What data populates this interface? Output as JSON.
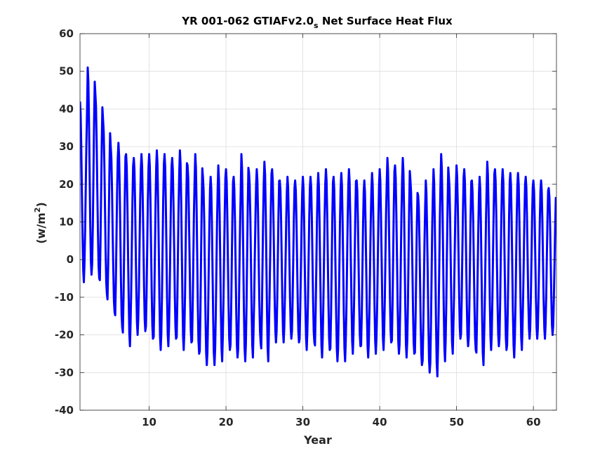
{
  "chart_data": {
    "type": "line",
    "title": "YR 001-062 GTIAFv2.0",
    "title_subscript": "s",
    "title_suffix": " Net Surface Heat Flux",
    "xlabel": "Year",
    "ylabel_prefix": "(w/m",
    "ylabel_superscript": "2",
    "ylabel_suffix": ")",
    "xlim": [
      1,
      63
    ],
    "ylim": [
      -40,
      60
    ],
    "xticks": [
      10,
      20,
      30,
      40,
      50,
      60
    ],
    "yticks": [
      -40,
      -30,
      -20,
      -10,
      0,
      10,
      20,
      30,
      40,
      50,
      60
    ],
    "grid": true,
    "line_color": "#0000ff",
    "samples_per_year": 12,
    "series": [
      {
        "annual_max": [
          42,
          51,
          44,
          37,
          30,
          31,
          28,
          27,
          28,
          28,
          29,
          28,
          27,
          29,
          25,
          28,
          22,
          22,
          25,
          24,
          22,
          28,
          23,
          24,
          26,
          24,
          21,
          22,
          21,
          22,
          22,
          23,
          24,
          22,
          23,
          24,
          21,
          21,
          23,
          24,
          27,
          25,
          27,
          21,
          17,
          21,
          24,
          28,
          22,
          25,
          24,
          21,
          22,
          26,
          24,
          24,
          23,
          23,
          22,
          21,
          21,
          19
        ],
        "annual_min": [
          -6,
          -4,
          -5,
          -9,
          -14,
          -18,
          -23,
          -20,
          -19,
          -21,
          -24,
          -23,
          -21,
          -24,
          -22,
          -25,
          -28,
          -28,
          -27,
          -24,
          -26,
          -27,
          -26,
          -22,
          -27,
          -22,
          -22,
          -21,
          -22,
          -24,
          -22,
          -26,
          -24,
          -27,
          -27,
          -25,
          -23,
          -26,
          -25,
          -24,
          -22,
          -25,
          -26,
          -25,
          -28,
          -30,
          -31,
          -27,
          -25,
          -21,
          -23,
          -24,
          -28,
          -24,
          -23,
          -24,
          -26,
          -24,
          -21,
          -21,
          -21,
          -20
        ]
      }
    ]
  }
}
